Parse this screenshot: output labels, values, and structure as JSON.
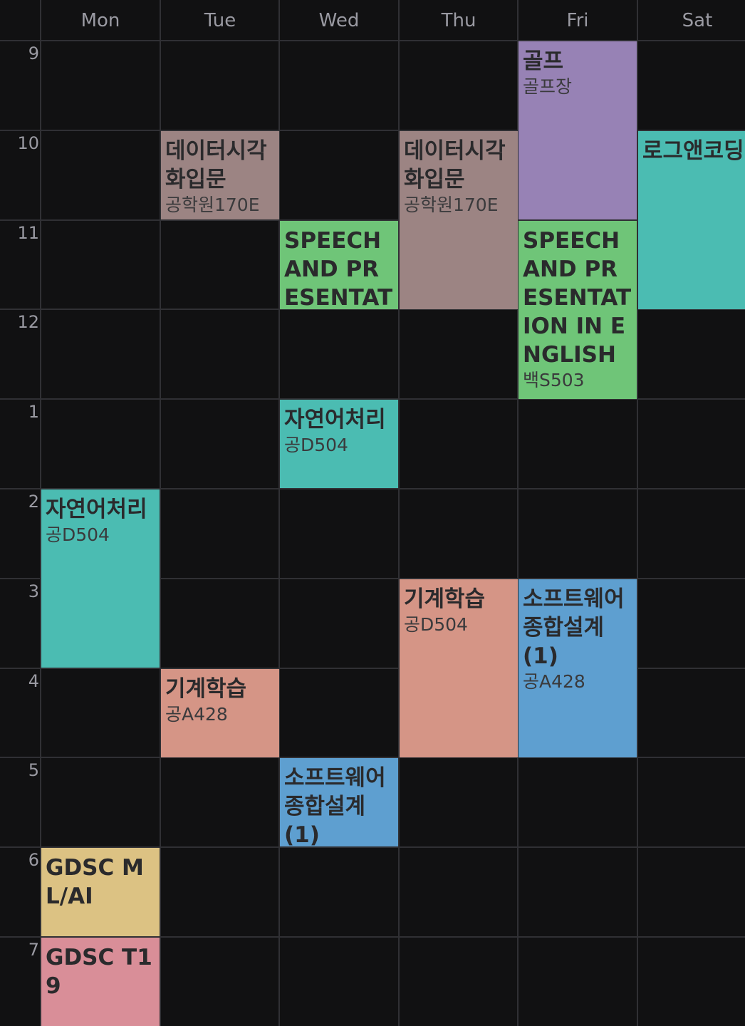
{
  "days": [
    "Mon",
    "Tue",
    "Wed",
    "Thu",
    "Fri",
    "Sat"
  ],
  "hours": [
    "9",
    "10",
    "11",
    "12",
    "1",
    "2",
    "3",
    "4",
    "5",
    "6",
    "7"
  ],
  "events": [
    {
      "day": 4,
      "start": 0,
      "duration": 2,
      "title": "골프",
      "room": "골프장",
      "color": "#9782b5"
    },
    {
      "day": 1,
      "start": 1,
      "duration": 1,
      "title": "데이터시각화입문",
      "room": "공학원170E",
      "color": "#9c8483"
    },
    {
      "day": 3,
      "start": 1,
      "duration": 2,
      "title": "데이터시각화입문",
      "room": "공학원170E",
      "color": "#9c8483"
    },
    {
      "day": 5,
      "start": 1,
      "duration": 2,
      "title": "로그앤코딩",
      "room": "",
      "color": "#4bbcb2"
    },
    {
      "day": 2,
      "start": 2,
      "duration": 1,
      "title": "SPEECH AND PRESENTATION IN ENGLISH",
      "room": "",
      "color": "#6fc578"
    },
    {
      "day": 4,
      "start": 2,
      "duration": 2,
      "title": "SPEECH AND PRESENTATION IN ENGLISH",
      "room": "백S503",
      "color": "#6fc578"
    },
    {
      "day": 2,
      "start": 4,
      "duration": 1,
      "title": "자연어처리",
      "room": "공D504",
      "color": "#4bbcb2"
    },
    {
      "day": 0,
      "start": 5,
      "duration": 2,
      "title": "자연어처리",
      "room": "공D504",
      "color": "#4bbcb2"
    },
    {
      "day": 3,
      "start": 6,
      "duration": 2,
      "title": "기계학습",
      "room": "공D504",
      "color": "#d59586"
    },
    {
      "day": 4,
      "start": 6,
      "duration": 2,
      "title": "소프트웨어종합설계(1)",
      "room": "공A428",
      "color": "#5e9fd0"
    },
    {
      "day": 1,
      "start": 7,
      "duration": 1,
      "title": "기계학습",
      "room": "공A428",
      "color": "#d59586"
    },
    {
      "day": 2,
      "start": 8,
      "duration": 1,
      "title": "소프트웨어종합설계(1)",
      "room": "",
      "color": "#5e9fd0"
    },
    {
      "day": 0,
      "start": 9,
      "duration": 1,
      "title": "GDSC ML/AI",
      "room": "",
      "color": "#dcc283"
    },
    {
      "day": 0,
      "start": 10,
      "duration": 1,
      "title": "GDSC T19",
      "room": "",
      "color": "#d98e98"
    }
  ]
}
